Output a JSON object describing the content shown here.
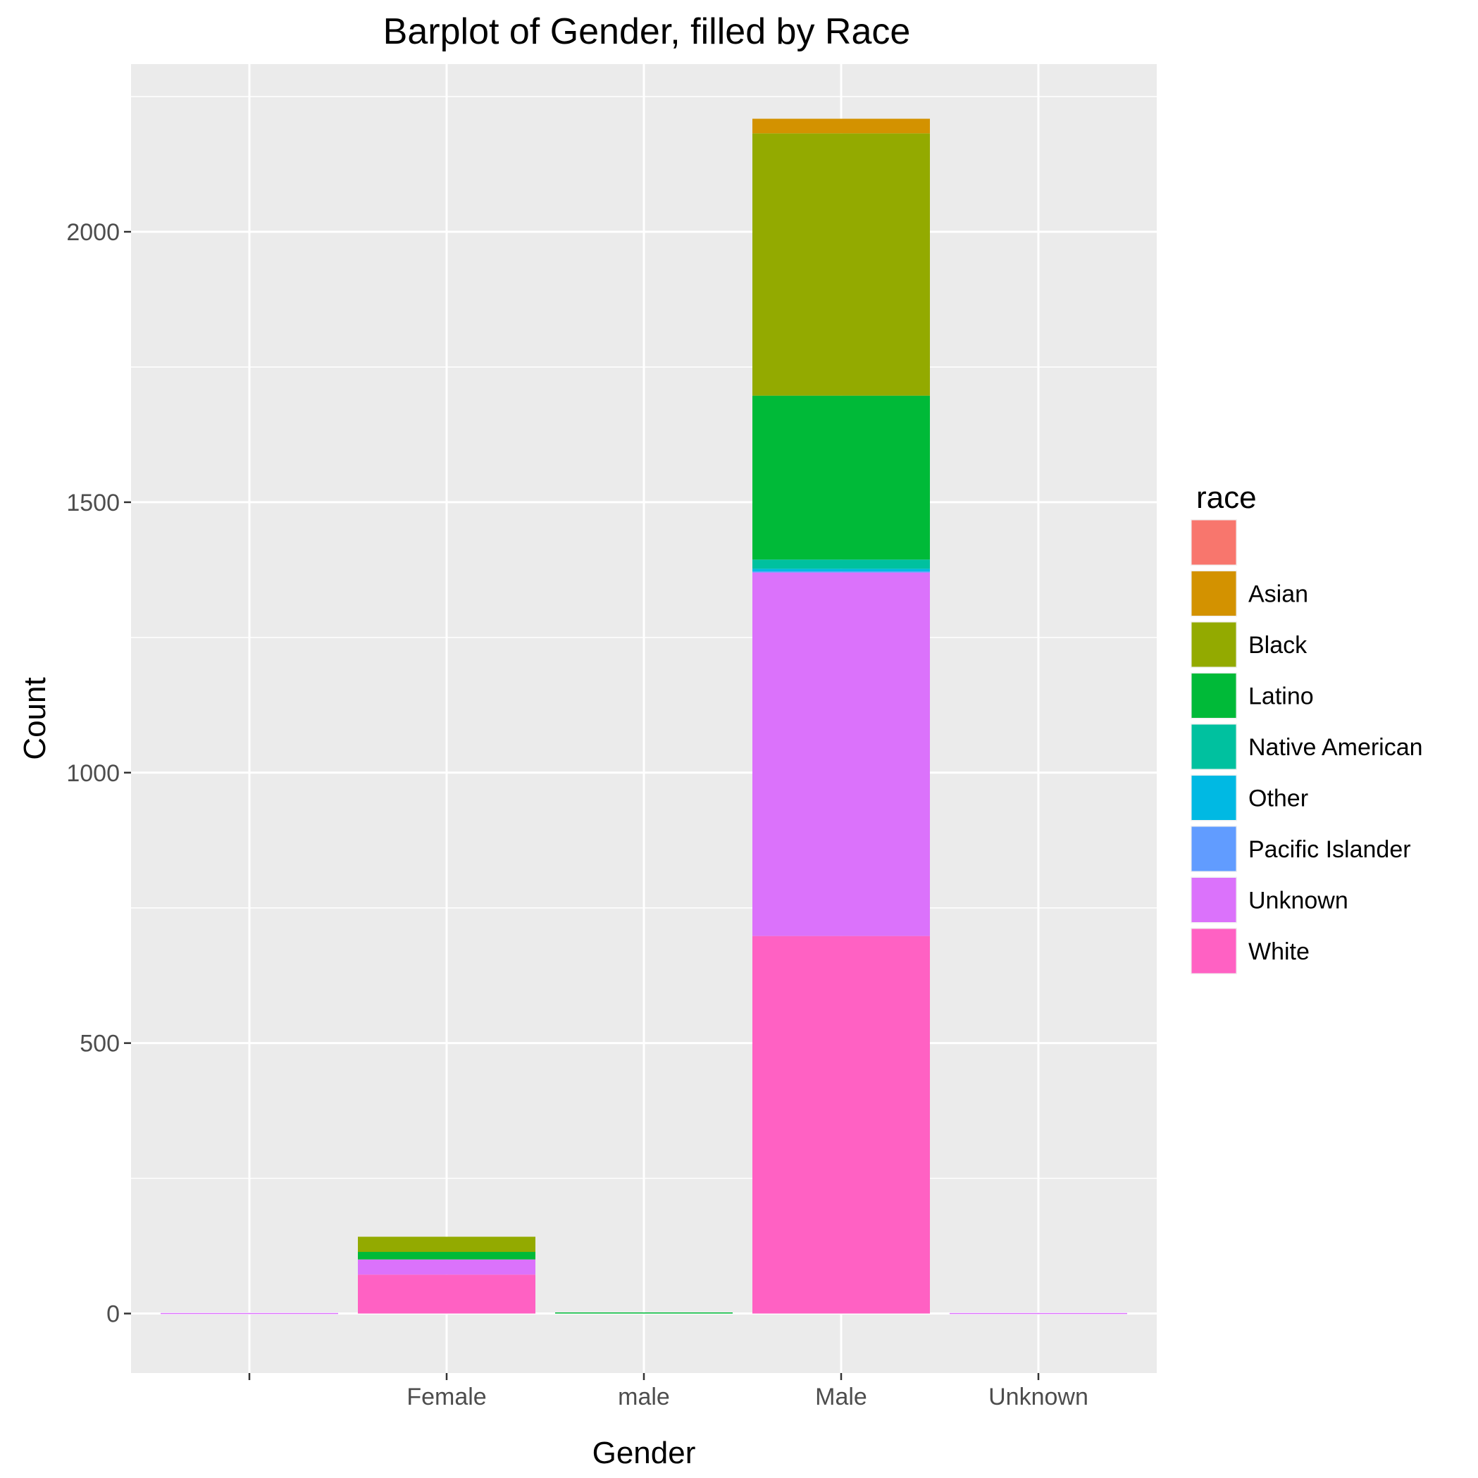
{
  "chart_data": {
    "type": "bar",
    "stacked": true,
    "title": "Barplot of Gender, filled by Race",
    "xlabel": "Gender",
    "ylabel": "Count",
    "categories": [
      "",
      "Female",
      "male",
      "Male",
      "Unknown"
    ],
    "ylim": [
      -110,
      2310
    ],
    "yticks": [
      0,
      500,
      1000,
      1500,
      2000
    ],
    "grid": true,
    "legend": {
      "title": "race",
      "placement": "right"
    },
    "series": [
      {
        "name": "",
        "color": "#F8766D",
        "values": [
          0,
          0,
          0,
          0,
          0
        ]
      },
      {
        "name": "Asian",
        "color": "#D39200",
        "values": [
          0,
          0,
          0,
          27,
          0
        ]
      },
      {
        "name": "Black",
        "color": "#93AA00",
        "values": [
          0,
          28,
          0,
          485,
          0
        ]
      },
      {
        "name": "Latino",
        "color": "#00BA38",
        "values": [
          0,
          14,
          2,
          303,
          0
        ]
      },
      {
        "name": "Native American",
        "color": "#00C19F",
        "values": [
          0,
          0,
          0,
          17,
          0
        ]
      },
      {
        "name": "Other",
        "color": "#00B9E3",
        "values": [
          0,
          0,
          0,
          5,
          0
        ]
      },
      {
        "name": "Pacific Islander",
        "color": "#619CFF",
        "values": [
          0,
          0,
          0,
          2,
          0
        ]
      },
      {
        "name": "Unknown",
        "color": "#DB72FB",
        "values": [
          1,
          28,
          0,
          672,
          1
        ]
      },
      {
        "name": "White",
        "color": "#FF61C3",
        "values": [
          0,
          72,
          0,
          698,
          0
        ]
      }
    ]
  }
}
